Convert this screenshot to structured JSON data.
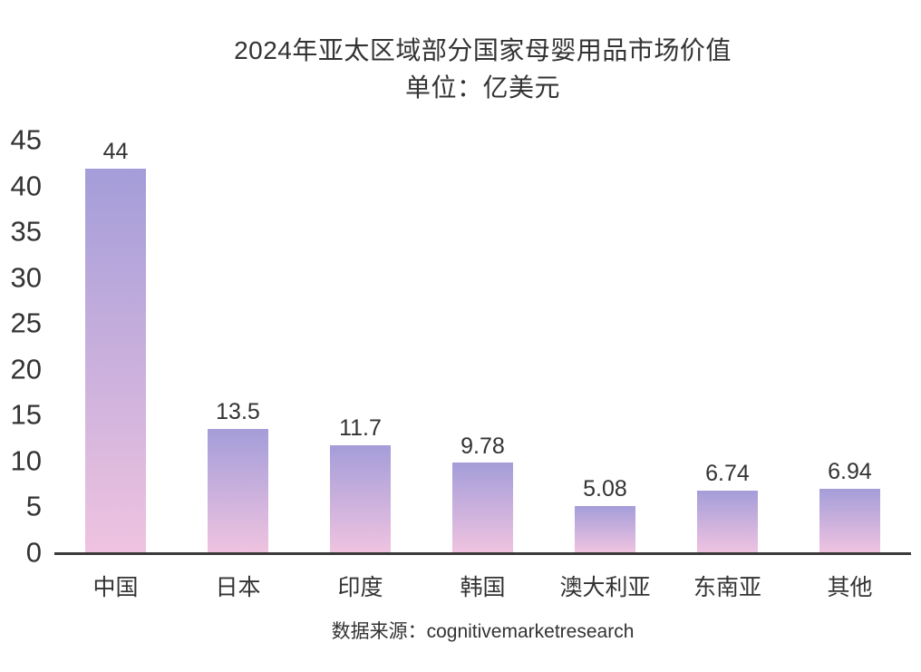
{
  "title": "2024年亚太区域部分国家母婴用品市场价值",
  "subtitle": "单位：亿美元",
  "source": "数据来源：cognitivemarketresearch",
  "chart_data": {
    "type": "bar",
    "title": "2024年亚太区域部分国家母婴用品市场价值",
    "subtitle": "单位：亿美元",
    "categories": [
      "中国",
      "日本",
      "印度",
      "韩国",
      "澳大利亚",
      "东南亚",
      "其他"
    ],
    "values": [
      44,
      13.5,
      11.7,
      9.78,
      5.08,
      6.74,
      6.94
    ],
    "value_labels": [
      "44",
      "13.5",
      "11.7",
      "9.78",
      "5.08",
      "6.74",
      "6.94"
    ],
    "xlabel": "",
    "ylabel": "",
    "ylim": [
      0,
      45
    ],
    "y_ticks": [
      0,
      5,
      10,
      15,
      20,
      25,
      30,
      35,
      40,
      45
    ],
    "grid": false,
    "legend": "none",
    "source": "数据来源：cognitivemarketresearch",
    "colors": {
      "bar_gradient_top": "#a49dd9",
      "bar_gradient_bottom": "#efc3e0",
      "axis_line": "#3a3a3a",
      "text": "#333333"
    }
  }
}
